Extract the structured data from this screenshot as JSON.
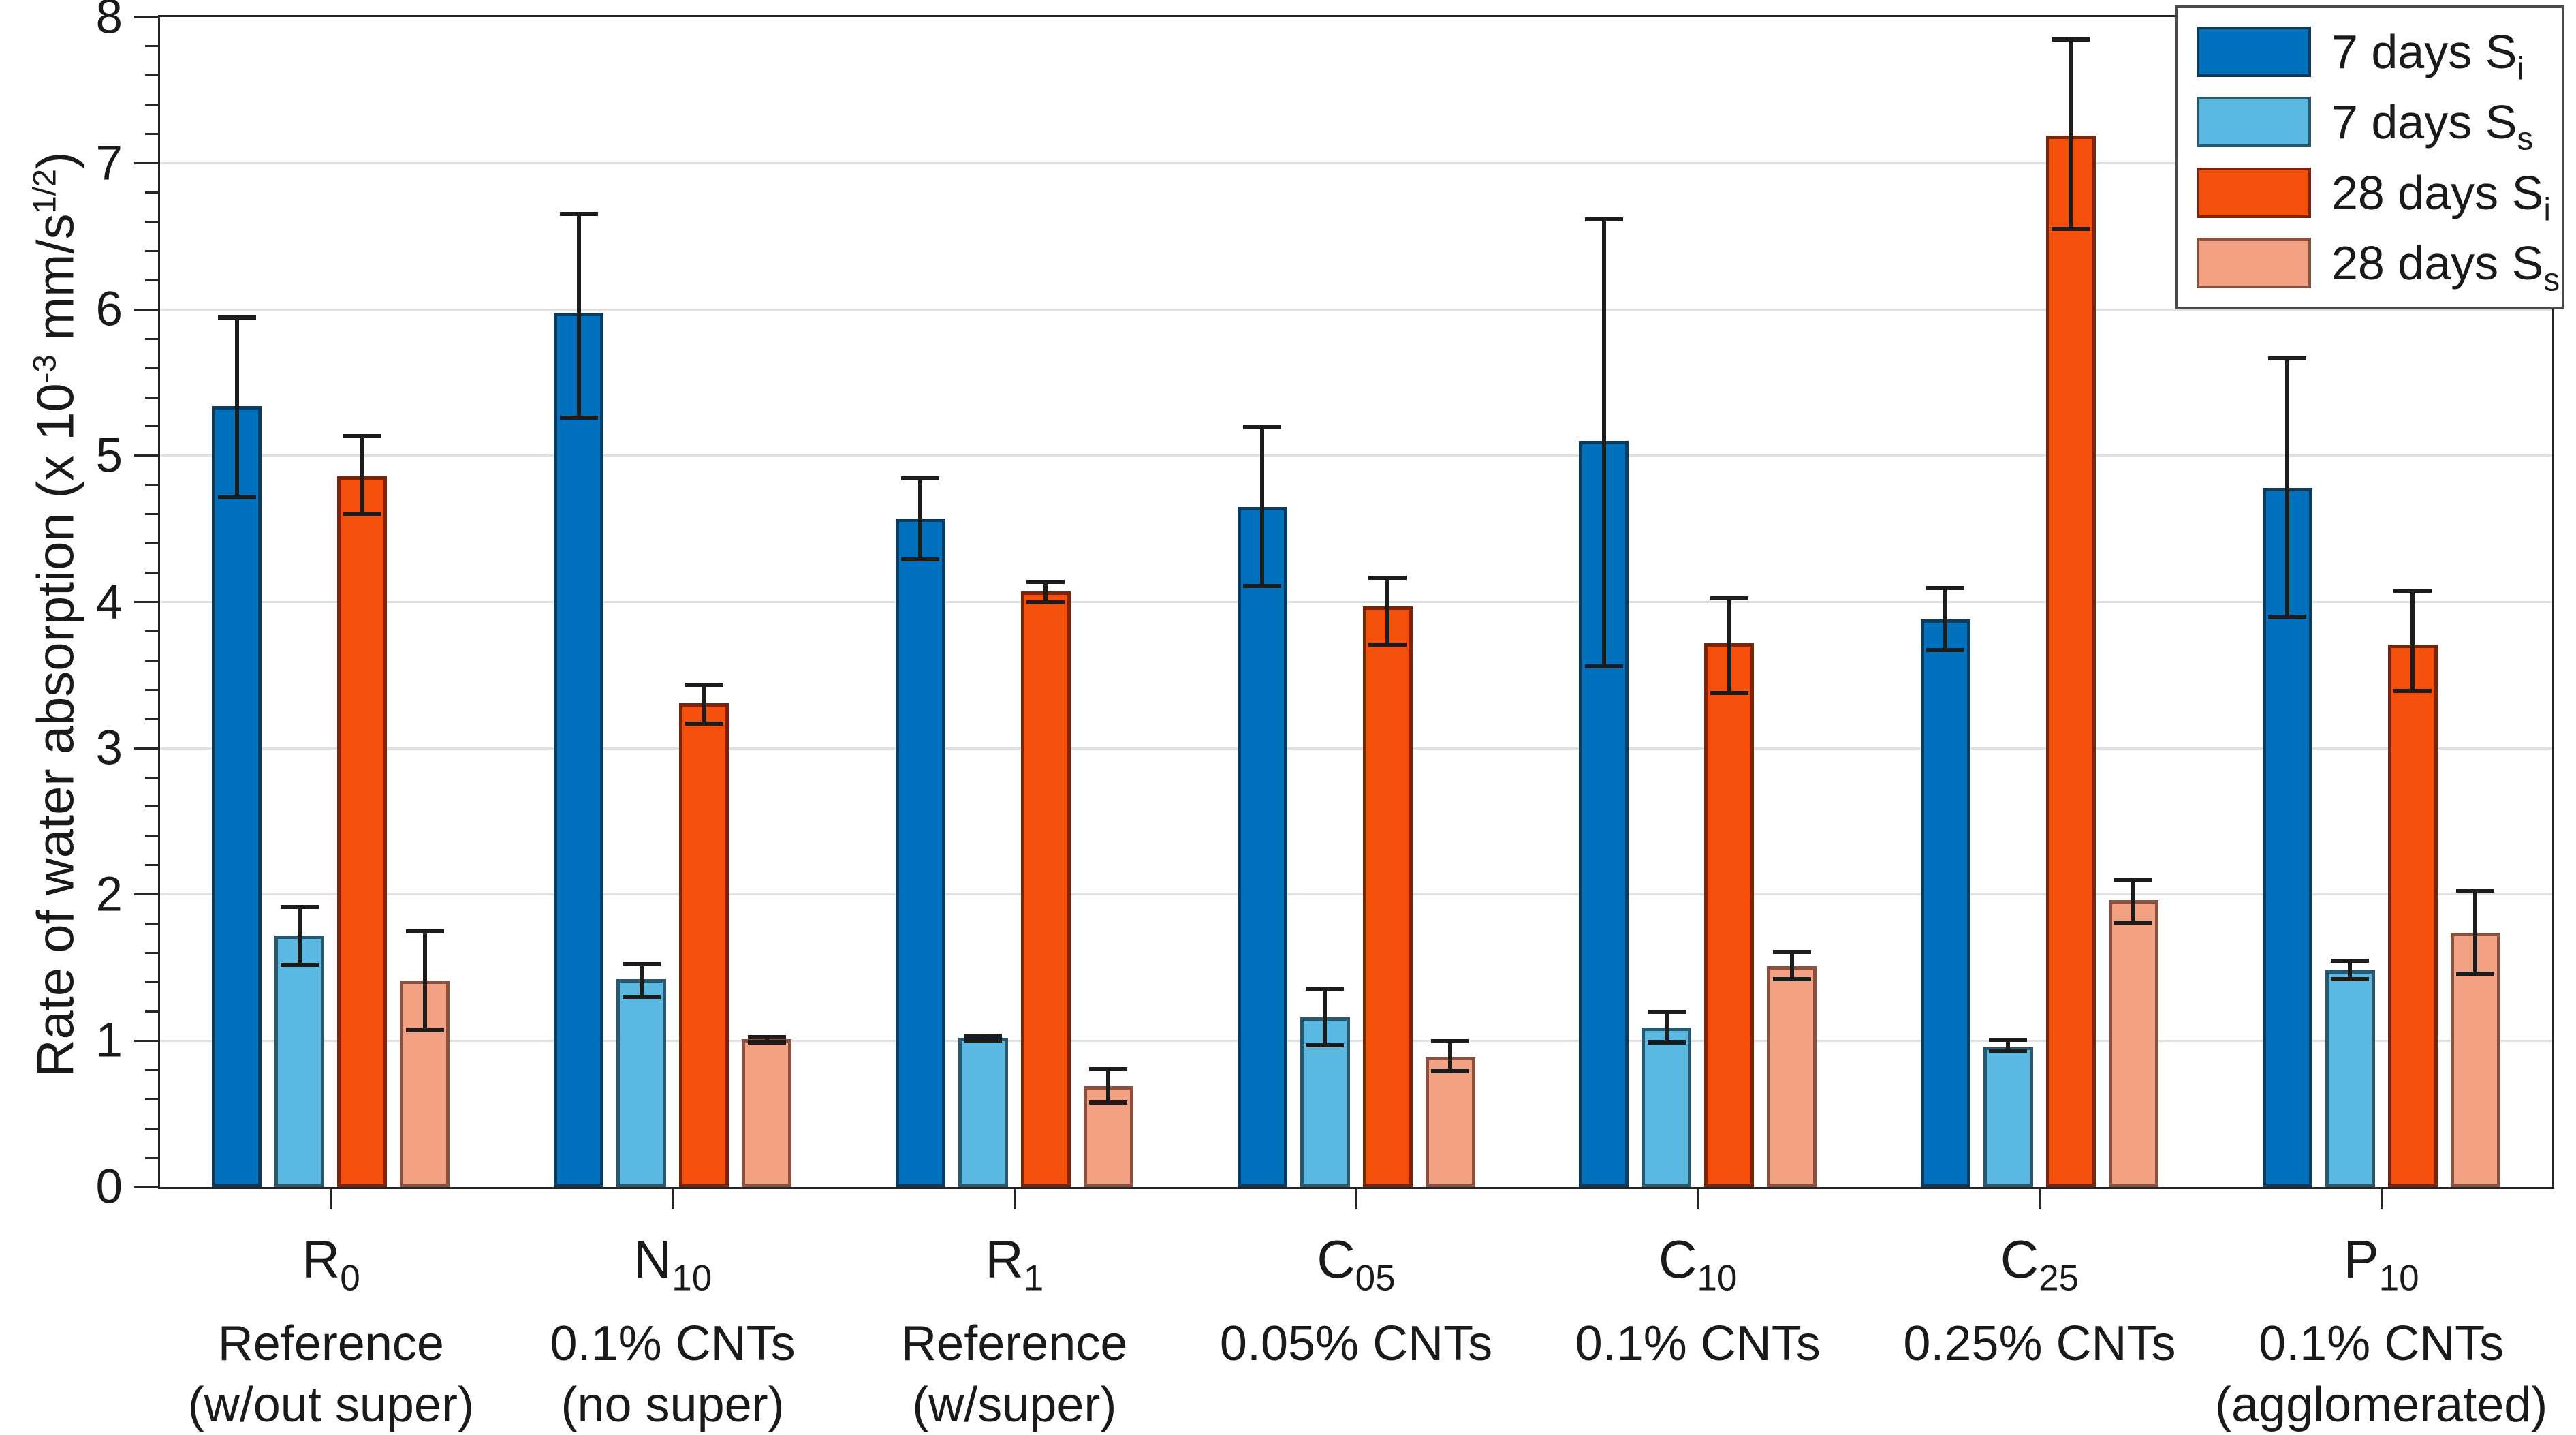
{
  "figure": {
    "ylabel": {
      "prefix": "Rate of water absorption (x 10",
      "sup1": "-3",
      "mid": " mm/s",
      "sup2": "1/2",
      "suffix": ")"
    },
    "y_axis": {
      "min": 0,
      "max": 8,
      "major_step": 1,
      "minor_step": 0.2,
      "tick_labels": [
        "0",
        "1",
        "2",
        "3",
        "4",
        "5",
        "6",
        "7",
        "8"
      ]
    },
    "colors": {
      "axis": "#262626",
      "grid": "#e0e0e0",
      "error_bar": "#1c1c1c",
      "legend_border": "#4a4a4a",
      "series_7d_si": "#0071BC",
      "series_7d_ss": "#5BB8E1",
      "series_28d_si": "#F4500C",
      "series_28d_ss": "#F3A183"
    }
  },
  "chart_data": {
    "type": "bar",
    "title": "",
    "xlabel": "",
    "ylabel": "Rate of water absorption (x 10^-3 mm/s^1/2)",
    "ylim": [
      0,
      8
    ],
    "grid": "horizontal major gridlines",
    "legend_position": "top-right",
    "error_bars": true,
    "categories": [
      {
        "head": "R",
        "head_sub": "0",
        "line1": "Reference",
        "line2": "(w/out super)"
      },
      {
        "head": "N",
        "head_sub": "10",
        "line1": "0.1% CNTs",
        "line2": "(no super)"
      },
      {
        "head": "R",
        "head_sub": "1",
        "line1": "Reference",
        "line2": "(w/super)"
      },
      {
        "head": "C",
        "head_sub": "05",
        "line1": "0.05% CNTs",
        "line2": ""
      },
      {
        "head": "C",
        "head_sub": "10",
        "line1": "0.1% CNTs",
        "line2": ""
      },
      {
        "head": "C",
        "head_sub": "25",
        "line1": "0.25% CNTs",
        "line2": ""
      },
      {
        "head": "P",
        "head_sub": "10",
        "line1": "0.1% CNTs",
        "line2": "(agglomerated)"
      }
    ],
    "series": [
      {
        "name": "7 days S_i",
        "legend_text": "7 days S",
        "legend_sub": "i",
        "color": "#0071BC",
        "edge": "#0a3a5e",
        "values": [
          5.34,
          5.98,
          4.57,
          4.65,
          5.1,
          3.88,
          4.78
        ],
        "err_low": [
          4.72,
          5.26,
          4.29,
          4.11,
          3.56,
          3.67,
          3.9
        ],
        "err_high": [
          5.95,
          6.66,
          4.85,
          5.2,
          6.62,
          4.1,
          5.67
        ]
      },
      {
        "name": "7 days S_s",
        "legend_text": "7 days S",
        "legend_sub": "s",
        "color": "#5BB8E1",
        "edge": "#27586e",
        "values": [
          1.72,
          1.42,
          1.02,
          1.16,
          1.09,
          0.96,
          1.48
        ],
        "err_low": [
          1.52,
          1.3,
          1.0,
          0.97,
          0.99,
          0.93,
          1.42
        ],
        "err_high": [
          1.92,
          1.53,
          1.04,
          1.36,
          1.2,
          1.01,
          1.55
        ]
      },
      {
        "name": "28 days S_i",
        "legend_text": "28 days S",
        "legend_sub": "i",
        "color": "#F4500C",
        "edge": "#7b2507",
        "values": [
          4.86,
          3.31,
          4.07,
          3.97,
          3.72,
          7.19,
          3.71
        ],
        "err_low": [
          4.6,
          3.17,
          4.0,
          3.71,
          3.38,
          6.55,
          3.39
        ],
        "err_high": [
          5.14,
          3.44,
          4.14,
          4.17,
          4.03,
          7.85,
          4.08
        ]
      },
      {
        "name": "28 days S_s",
        "legend_text": "28 days S",
        "legend_sub": "s",
        "color": "#F3A183",
        "edge": "#8a5140",
        "values": [
          1.41,
          1.01,
          0.69,
          0.89,
          1.51,
          1.96,
          1.74
        ],
        "err_low": [
          1.07,
          0.99,
          0.58,
          0.79,
          1.42,
          1.81,
          1.46
        ],
        "err_high": [
          1.75,
          1.03,
          0.81,
          1.0,
          1.61,
          2.1,
          2.03
        ]
      }
    ]
  }
}
